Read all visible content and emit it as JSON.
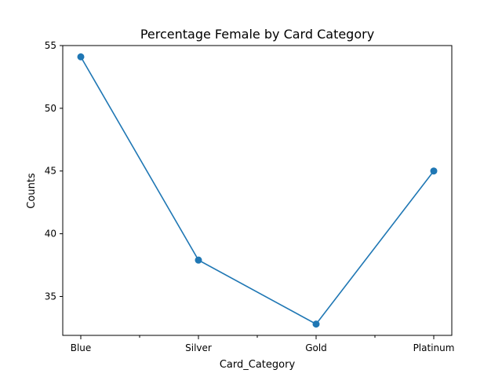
{
  "chart_data": {
    "type": "line",
    "title": "Percentage Female by Card Category",
    "xlabel": "Card_Category",
    "ylabel": "Counts",
    "categories": [
      "Blue",
      "Silver",
      "Gold",
      "Platinum"
    ],
    "values": [
      54.1,
      37.9,
      32.8,
      45.0
    ],
    "ylim": [
      31.9,
      55.0
    ],
    "yticks": [
      35,
      40,
      45,
      50,
      55
    ],
    "minor_xticks": true,
    "grid": false,
    "legend": "none",
    "line_color": "#1f77b4"
  }
}
